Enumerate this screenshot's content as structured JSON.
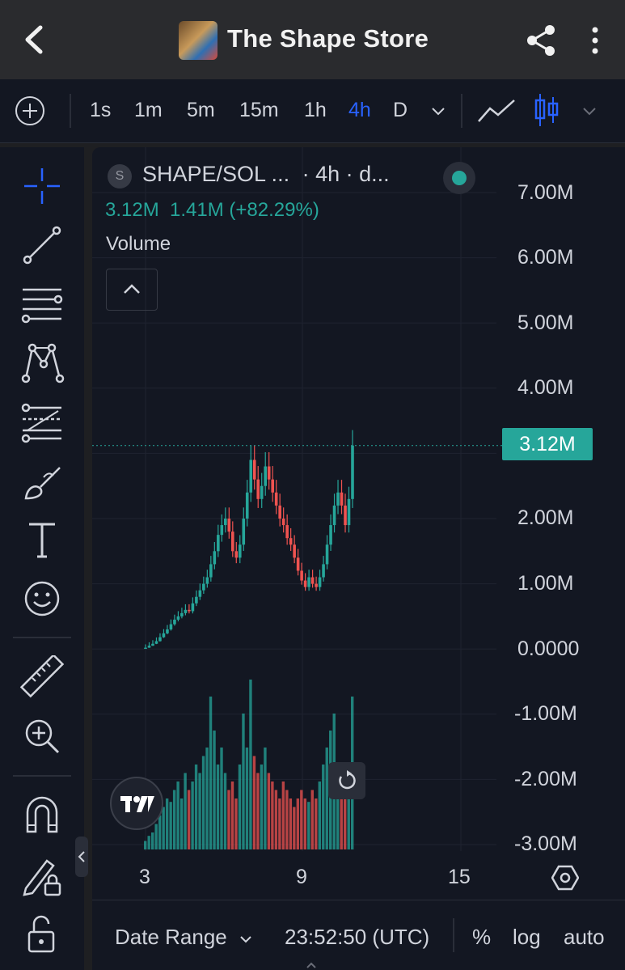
{
  "header": {
    "title": "The Shape Store"
  },
  "toolbar": {
    "timeframes": [
      "1s",
      "1m",
      "5m",
      "15m",
      "1h",
      "4h",
      "D"
    ],
    "active_timeframe": "4h"
  },
  "legend": {
    "symbol_badge": "S",
    "symbol": "SHAPE/SOL ...",
    "interval": "· 4h · d...",
    "ohlc": "3.12M  1.41M (+82.29%)",
    "volume_label": "Volume"
  },
  "price_axis": {
    "labels": [
      "7.00M",
      "6.00M",
      "5.00M",
      "4.00M",
      "2.00M",
      "1.00M",
      "0.0000",
      "-1.00M",
      "-2.00M",
      "-3.00M"
    ],
    "last_price": "3.12M"
  },
  "time_axis": {
    "labels": [
      "3",
      "9",
      "15"
    ]
  },
  "bottom_bar": {
    "date_range": "Date Range",
    "clock": "23:52:50 (UTC)",
    "percent": "%",
    "log": "log",
    "auto": "auto"
  },
  "colors": {
    "up": "#26a69a",
    "down": "#ef5350",
    "accent": "#2962ff",
    "background": "#131722"
  },
  "icons": [
    "back-arrow-icon",
    "share-icon",
    "more-vertical-icon",
    "add-indicator-icon",
    "chevron-down-icon",
    "line-chart-icon",
    "candles-icon",
    "crosshair-icon",
    "trend-line-icon",
    "horizontal-lines-icon",
    "pattern-icon",
    "fib-icon",
    "brush-icon",
    "text-icon",
    "emoji-icon",
    "ruler-icon",
    "zoom-in-icon",
    "magnet-icon",
    "lock-pencil-icon",
    "unlock-icon",
    "reset-icon",
    "settings-icon"
  ],
  "chart_data": {
    "type": "candlestick",
    "title": "SHAPE/SOL 4h",
    "x": [
      "3",
      "9",
      "15"
    ],
    "last_close": 3120000,
    "change": 1410000,
    "change_pct": 82.29,
    "ylim": [
      -3000000,
      7000000
    ],
    "y_ticks": [
      7000000,
      6000000,
      5000000,
      4000000,
      2000000,
      1000000,
      0,
      -1000000,
      -2000000,
      -3000000
    ],
    "close_series": [
      0.02,
      0.05,
      0.08,
      0.12,
      0.18,
      0.24,
      0.3,
      0.38,
      0.45,
      0.5,
      0.55,
      0.6,
      0.58,
      0.7,
      0.8,
      0.9,
      1.0,
      1.1,
      1.3,
      1.5,
      1.75,
      1.9,
      2.0,
      1.8,
      1.5,
      1.4,
      1.6,
      2.0,
      2.4,
      2.9,
      2.6,
      2.3,
      2.5,
      2.8,
      2.6,
      2.4,
      2.2,
      2.0,
      1.9,
      1.7,
      1.6,
      1.4,
      1.2,
      1.05,
      0.95,
      1.1,
      1.0,
      0.95,
      1.1,
      1.3,
      1.6,
      1.9,
      2.2,
      2.4,
      2.2,
      1.9,
      2.3,
      3.12
    ],
    "volume_series": [
      0.05,
      0.08,
      0.1,
      0.15,
      0.2,
      0.25,
      0.3,
      0.28,
      0.35,
      0.4,
      0.3,
      0.45,
      0.35,
      0.4,
      0.5,
      0.45,
      0.55,
      0.6,
      0.9,
      0.7,
      0.5,
      0.6,
      0.45,
      0.35,
      0.4,
      0.3,
      0.5,
      0.8,
      0.6,
      1.0,
      0.55,
      0.45,
      0.5,
      0.6,
      0.45,
      0.4,
      0.35,
      0.3,
      0.4,
      0.35,
      0.3,
      0.25,
      0.3,
      0.35,
      0.3,
      0.28,
      0.35,
      0.3,
      0.4,
      0.5,
      0.6,
      0.7,
      0.8,
      0.5,
      0.4,
      0.35,
      0.5,
      0.9
    ]
  }
}
